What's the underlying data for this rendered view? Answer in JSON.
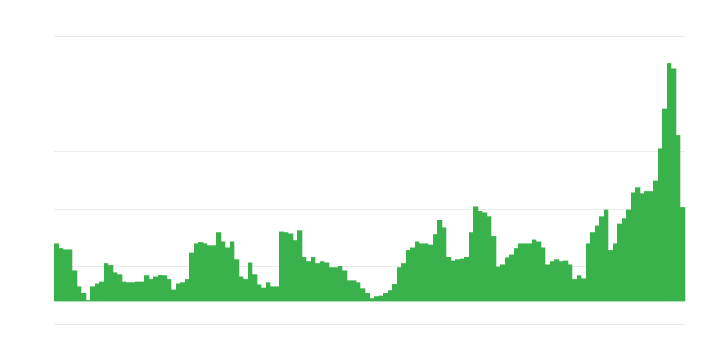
{
  "chart_data": {
    "type": "bar",
    "title": "",
    "xlabel": "",
    "ylabel": "",
    "ylim": [
      -4,
      46
    ],
    "grid": true,
    "legend": "none",
    "colors": {
      "bar": "#39b24c",
      "grid": "#ebebeb"
    },
    "values": [
      10.0,
      9.1,
      8.9,
      8.9,
      5.3,
      2.5,
      1.4,
      0.2,
      2.5,
      3.1,
      3.4,
      6.6,
      6.3,
      5.0,
      4.7,
      3.4,
      3.3,
      3.3,
      3.4,
      3.4,
      4.4,
      3.8,
      4.2,
      4.5,
      4.4,
      3.8,
      2.0,
      3.1,
      3.3,
      3.8,
      8.4,
      10.0,
      10.2,
      10.0,
      9.7,
      9.7,
      11.9,
      10.3,
      9.2,
      10.3,
      7.2,
      4.2,
      3.8,
      6.7,
      4.7,
      2.8,
      2.3,
      3.3,
      2.5,
      2.5,
      12.0,
      11.9,
      11.7,
      10.5,
      12.2,
      7.7,
      6.9,
      7.7,
      6.6,
      6.9,
      6.7,
      5.8,
      5.8,
      6.1,
      5.3,
      3.6,
      3.6,
      3.3,
      2.2,
      1.4,
      0.5,
      0.8,
      0.9,
      1.4,
      1.9,
      3.0,
      5.8,
      6.6,
      8.8,
      9.2,
      10.3,
      10.0,
      10.0,
      9.8,
      11.6,
      14.1,
      12.8,
      7.7,
      7.0,
      7.2,
      7.3,
      7.7,
      11.9,
      16.4,
      15.6,
      15.3,
      14.7,
      11.3,
      5.9,
      6.4,
      7.5,
      8.1,
      9.1,
      10.0,
      10.0,
      10.0,
      10.6,
      10.3,
      9.2,
      6.4,
      6.9,
      7.2,
      6.9,
      7.0,
      6.4,
      3.8,
      4.4,
      3.9,
      10.0,
      11.9,
      13.1,
      14.7,
      15.9,
      8.8,
      10.0,
      13.4,
      14.4,
      15.9,
      18.9,
      19.7,
      18.6,
      19.1,
      19.1,
      20.9,
      26.4,
      33.4,
      41.3,
      40.3,
      28.8,
      16.3
    ]
  }
}
